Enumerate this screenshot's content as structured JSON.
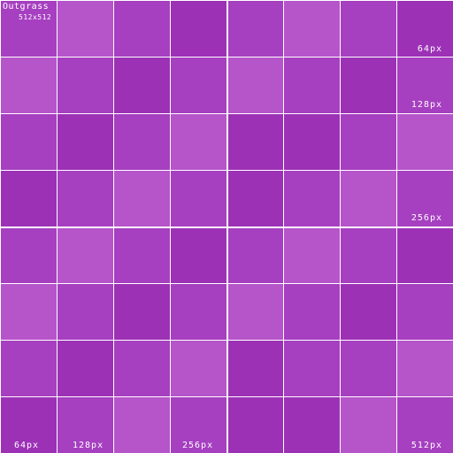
{
  "brand": "Outgrass",
  "size_label": "512x512",
  "labels": {
    "right_64": "64px",
    "right_128": "128px",
    "right_256": "256px",
    "bottom_512": "512px",
    "bottom_64": "64px",
    "bottom_128": "128px",
    "bottom_256": "256px"
  },
  "colors": {
    "light": "#b654ca",
    "medium": "#a63fc0",
    "dark": "#9c31b6",
    "grid": "#ffffff"
  },
  "tiles": [
    [
      "medium",
      "light",
      "medium",
      "dark",
      "medium",
      "light",
      "medium",
      "dark"
    ],
    [
      "light",
      "medium",
      "dark",
      "medium",
      "light",
      "medium",
      "dark",
      "medium"
    ],
    [
      "medium",
      "dark",
      "medium",
      "light",
      "dark",
      "dark",
      "medium",
      "light"
    ],
    [
      "dark",
      "medium",
      "light",
      "medium",
      "dark",
      "medium",
      "light",
      "medium"
    ],
    [
      "medium",
      "light",
      "medium",
      "dark",
      "medium",
      "light",
      "medium",
      "dark"
    ],
    [
      "light",
      "medium",
      "dark",
      "medium",
      "light",
      "medium",
      "dark",
      "medium"
    ],
    [
      "medium",
      "dark",
      "medium",
      "light",
      "dark",
      "medium",
      "medium",
      "light"
    ],
    [
      "dark",
      "medium",
      "light",
      "medium",
      "dark",
      "dark",
      "light",
      "medium"
    ]
  ]
}
